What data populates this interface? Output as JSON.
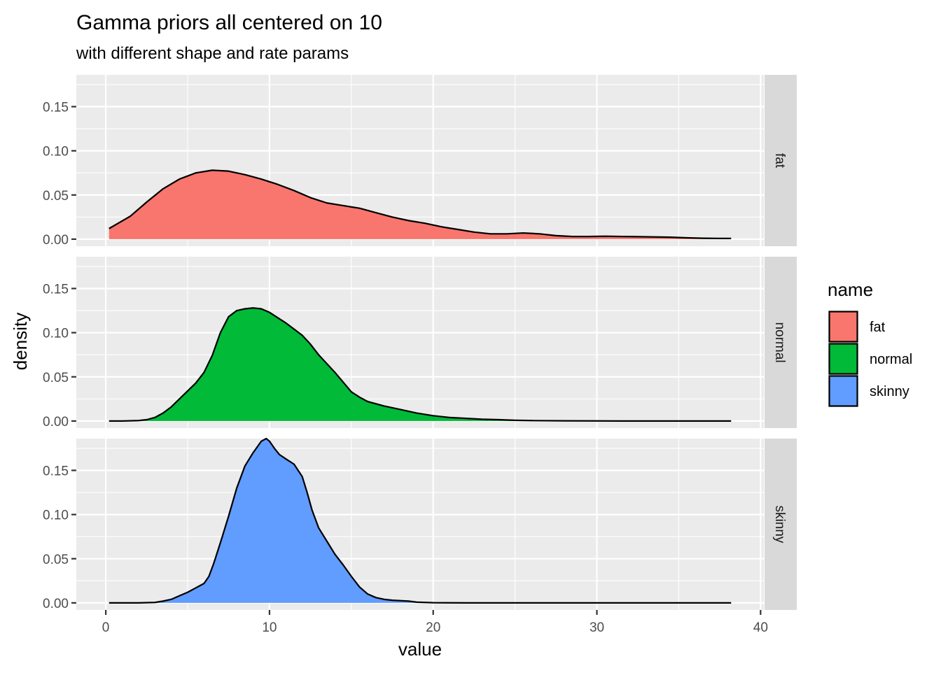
{
  "chart_data": {
    "type": "area",
    "title": "Gamma priors all centered on 10",
    "subtitle": "with different shape and rate params",
    "xlabel": "value",
    "ylabel": "density",
    "xlim": [
      -1.8,
      40.2
    ],
    "ylim": [
      -0.008,
      0.186
    ],
    "x_ticks": [
      0,
      10,
      20,
      30,
      40
    ],
    "x_tick_labels": [
      "0",
      "10",
      "20",
      "30",
      "40"
    ],
    "y_ticks": [
      0.0,
      0.05,
      0.1,
      0.15
    ],
    "y_tick_labels": [
      "0.00",
      "0.05",
      "0.10",
      "0.15"
    ],
    "facet_strip_position": "right",
    "grid": true,
    "legend": {
      "title": "name",
      "position": "right",
      "entries": [
        "fat",
        "normal",
        "skinny"
      ]
    },
    "series": [
      {
        "name": "fat",
        "facet": "fat",
        "color": "#F8766D",
        "x": [
          0.2,
          1.5,
          2.5,
          3.5,
          4.5,
          5.5,
          6.5,
          7.5,
          8.5,
          9.5,
          10.5,
          11.5,
          12.5,
          13.5,
          14.5,
          15.5,
          16.5,
          17.5,
          18.5,
          19.5,
          20.5,
          21.5,
          22.5,
          23.5,
          24.5,
          25.5,
          26.5,
          27.5,
          28.5,
          29.5,
          30.5,
          31.5,
          32.5,
          33.5,
          34.5,
          35.5,
          36.5,
          37.5,
          38.2
        ],
        "values": [
          0.012,
          0.026,
          0.042,
          0.057,
          0.068,
          0.075,
          0.078,
          0.077,
          0.073,
          0.068,
          0.062,
          0.055,
          0.047,
          0.041,
          0.038,
          0.035,
          0.03,
          0.025,
          0.021,
          0.018,
          0.014,
          0.011,
          0.008,
          0.006,
          0.006,
          0.007,
          0.006,
          0.004,
          0.003,
          0.003,
          0.0033,
          0.003,
          0.0028,
          0.0025,
          0.0022,
          0.0015,
          0.001,
          0.0008,
          0.0008
        ]
      },
      {
        "name": "normal",
        "facet": "normal",
        "color": "#00BA38",
        "x": [
          0.2,
          1,
          2,
          2.5,
          3,
          3.5,
          4,
          4.5,
          5,
          5.5,
          6,
          6.5,
          7,
          7.5,
          8,
          8.5,
          9,
          9.5,
          10,
          10.5,
          11,
          11.5,
          12,
          12.5,
          13,
          13.5,
          14,
          14.5,
          15,
          15.5,
          16,
          17,
          18,
          19,
          20,
          21,
          22,
          23,
          24,
          25,
          26,
          28,
          30,
          32,
          35,
          38.2
        ],
        "values": [
          0,
          0,
          0.0005,
          0.0015,
          0.004,
          0.009,
          0.016,
          0.025,
          0.034,
          0.043,
          0.055,
          0.074,
          0.1,
          0.118,
          0.125,
          0.127,
          0.128,
          0.127,
          0.123,
          0.117,
          0.111,
          0.104,
          0.097,
          0.087,
          0.075,
          0.065,
          0.055,
          0.044,
          0.033,
          0.027,
          0.022,
          0.017,
          0.013,
          0.009,
          0.006,
          0.004,
          0.003,
          0.002,
          0.0015,
          0.0008,
          0.0005,
          0.0002,
          0.0001,
          0,
          0,
          0
        ]
      },
      {
        "name": "skinny",
        "facet": "skinny",
        "color": "#619CFF",
        "x": [
          0.2,
          2,
          3,
          3.5,
          4,
          4.5,
          5,
          5.5,
          6,
          6.3,
          6.6,
          7,
          7.5,
          8,
          8.5,
          9,
          9.5,
          9.8,
          10,
          10.3,
          10.6,
          11,
          11.5,
          12,
          12.3,
          12.6,
          13,
          13.5,
          14,
          14.5,
          15,
          15.5,
          16,
          16.5,
          17,
          17.5,
          18,
          18.5,
          19,
          20,
          22,
          25,
          30,
          38.2
        ],
        "values": [
          0,
          0,
          0.0005,
          0.002,
          0.004,
          0.008,
          0.012,
          0.017,
          0.022,
          0.03,
          0.045,
          0.068,
          0.098,
          0.13,
          0.155,
          0.17,
          0.183,
          0.186,
          0.183,
          0.175,
          0.168,
          0.163,
          0.157,
          0.143,
          0.125,
          0.105,
          0.085,
          0.07,
          0.055,
          0.043,
          0.03,
          0.018,
          0.01,
          0.006,
          0.004,
          0.003,
          0.0025,
          0.002,
          0.0008,
          0.0002,
          0,
          0,
          0,
          0
        ]
      }
    ]
  }
}
